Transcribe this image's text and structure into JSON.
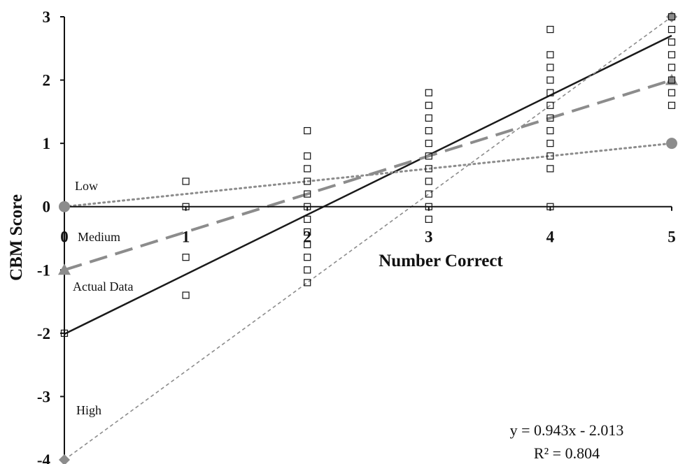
{
  "chart_data": {
    "type": "scatter",
    "title": "",
    "xlabel": "Number Correct",
    "ylabel": "CBM Score",
    "xlim": [
      0,
      5
    ],
    "ylim": [
      -4,
      3
    ],
    "x_ticks": [
      "0",
      "1",
      "2",
      "3",
      "4",
      "5"
    ],
    "y_ticks": [
      "-4",
      "-3",
      "-2",
      "-1",
      "0",
      "1",
      "2",
      "3"
    ],
    "grid": false,
    "annotations": {
      "low": "Low",
      "medium": "Medium",
      "actual": "Actual Data",
      "high": "High"
    },
    "equation": "y = 0.943x - 2.013",
    "r_squared": "R² = 0.804",
    "series": [
      {
        "key": "actual",
        "style": "square-markers",
        "color": "#111111",
        "points": [
          [
            0,
            -2
          ],
          [
            1,
            0.4
          ],
          [
            1,
            0
          ],
          [
            1,
            -0.8
          ],
          [
            1,
            -1.4
          ],
          [
            2,
            1.2
          ],
          [
            2,
            0.8
          ],
          [
            2,
            0.6
          ],
          [
            2,
            0.4
          ],
          [
            2,
            0.2
          ],
          [
            2,
            0
          ],
          [
            2,
            -0.2
          ],
          [
            2,
            -0.4
          ],
          [
            2,
            -0.6
          ],
          [
            2,
            -0.8
          ],
          [
            2,
            -1
          ],
          [
            2,
            -1.2
          ],
          [
            3,
            1.8
          ],
          [
            3,
            1.6
          ],
          [
            3,
            1.4
          ],
          [
            3,
            1.2
          ],
          [
            3,
            1.0
          ],
          [
            3,
            0.8
          ],
          [
            3,
            0.6
          ],
          [
            3,
            0.4
          ],
          [
            3,
            0.2
          ],
          [
            3,
            0
          ],
          [
            3,
            -0.2
          ],
          [
            4,
            2.8
          ],
          [
            4,
            2.4
          ],
          [
            4,
            2.2
          ],
          [
            4,
            2.0
          ],
          [
            4,
            1.8
          ],
          [
            4,
            1.6
          ],
          [
            4,
            1.4
          ],
          [
            4,
            1.2
          ],
          [
            4,
            1.0
          ],
          [
            4,
            0.8
          ],
          [
            4,
            0.6
          ],
          [
            4,
            0
          ],
          [
            5,
            3.0
          ],
          [
            5,
            2.8
          ],
          [
            5,
            2.6
          ],
          [
            5,
            2.4
          ],
          [
            5,
            2.2
          ],
          [
            5,
            2.0
          ],
          [
            5,
            1.8
          ],
          [
            5,
            1.6
          ]
        ]
      },
      {
        "key": "fit",
        "style": "solid-line",
        "color": "#1a1a1a",
        "points": [
          [
            0,
            -2.013
          ],
          [
            5,
            2.702
          ]
        ]
      },
      {
        "key": "low",
        "style": "dotted-line",
        "color": "#8c8c8c",
        "marker": "circle",
        "points": [
          [
            0,
            0
          ],
          [
            5,
            1
          ]
        ]
      },
      {
        "key": "medium",
        "style": "dashed-line",
        "color": "#8c8c8c",
        "marker": "triangle",
        "points": [
          [
            0,
            -1
          ],
          [
            5,
            2
          ]
        ]
      },
      {
        "key": "high",
        "style": "short-dashed-line",
        "color": "#8c8c8c",
        "marker": "diamond",
        "points": [
          [
            0,
            -4
          ],
          [
            5,
            3
          ]
        ]
      }
    ]
  }
}
